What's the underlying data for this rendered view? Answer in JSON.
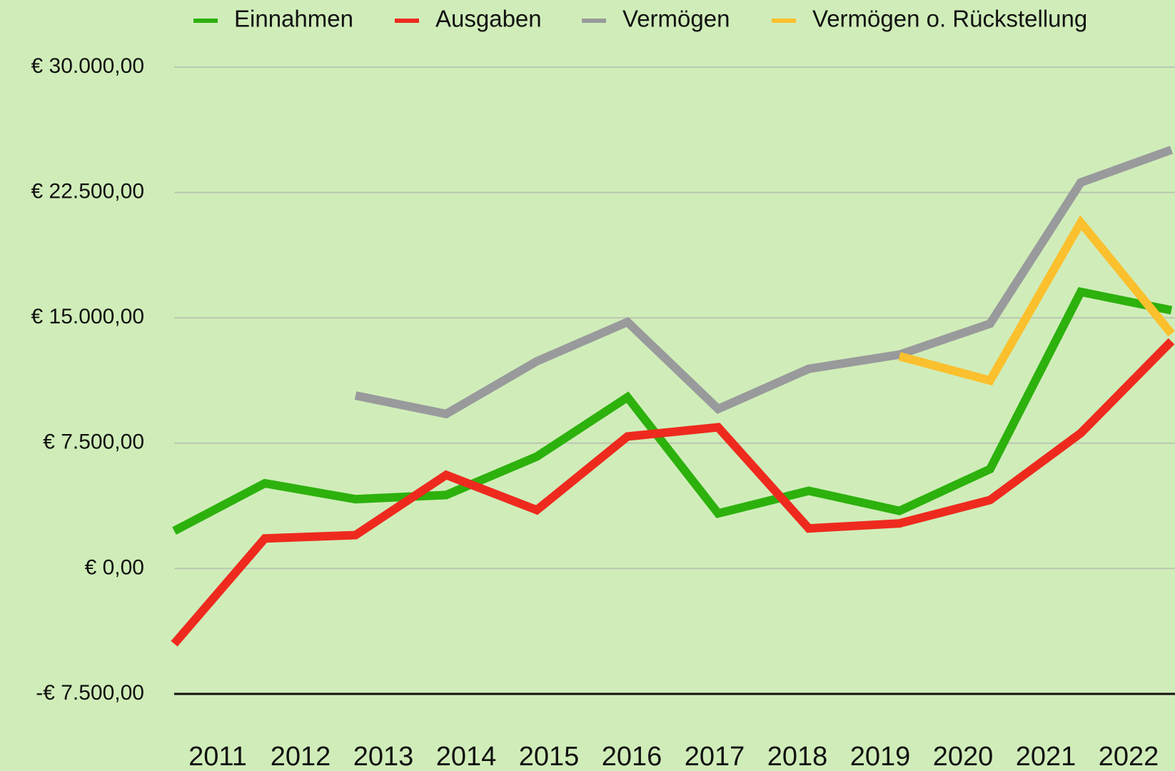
{
  "chart_data": {
    "type": "line",
    "categories": [
      "2011",
      "2012",
      "2013",
      "2014",
      "2015",
      "2016",
      "2017",
      "2018",
      "2019",
      "2020",
      "2021",
      "2022"
    ],
    "series": [
      {
        "name": "Einnahmen",
        "color": "#2db10d",
        "values": [
          2250,
          5100,
          4150,
          4400,
          6700,
          10250,
          3300,
          4650,
          3450,
          5950,
          16550,
          15450
        ]
      },
      {
        "name": "Ausgaben",
        "color": "#ee2a1e",
        "values": [
          -4500,
          1800,
          2000,
          5600,
          3500,
          7900,
          8450,
          2400,
          2700,
          4100,
          8100,
          13600
        ]
      },
      {
        "name": "Vermögen",
        "color": "#999a9c",
        "values": [
          null,
          null,
          10350,
          9250,
          12400,
          14750,
          9550,
          11950,
          12800,
          14650,
          23100,
          25050
        ]
      },
      {
        "name": "Vermögen o. Rückstellung",
        "color": "#fbc02d",
        "values": [
          null,
          null,
          null,
          null,
          null,
          null,
          null,
          null,
          12700,
          11250,
          20700,
          14050
        ]
      }
    ],
    "ylim": [
      -7500,
      30000
    ],
    "yticks": [
      {
        "value": -7500,
        "label": "-€ 7.500,00"
      },
      {
        "value": 0,
        "label": "€ 0,00"
      },
      {
        "value": 7500,
        "label": "€ 7.500,00"
      },
      {
        "value": 15000,
        "label": "€ 15.000,00"
      },
      {
        "value": 22500,
        "label": "€ 22.500,00"
      },
      {
        "value": 30000,
        "label": "€ 30.000,00"
      }
    ],
    "grid": true,
    "legend": "top"
  }
}
